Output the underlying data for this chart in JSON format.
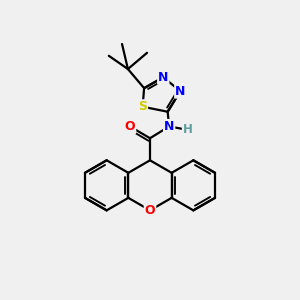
{
  "background_color": "#f0f0f0",
  "bond_color": "#000000",
  "atom_colors": {
    "N": "#0000FF",
    "O": "#FF0000",
    "S": "#CCCC00",
    "H": "#5F9EA0",
    "C": "#000000"
  },
  "figsize": [
    3.0,
    3.0
  ],
  "dpi": 100,
  "xlim": [
    0,
    10
  ],
  "ylim": [
    0,
    10
  ]
}
